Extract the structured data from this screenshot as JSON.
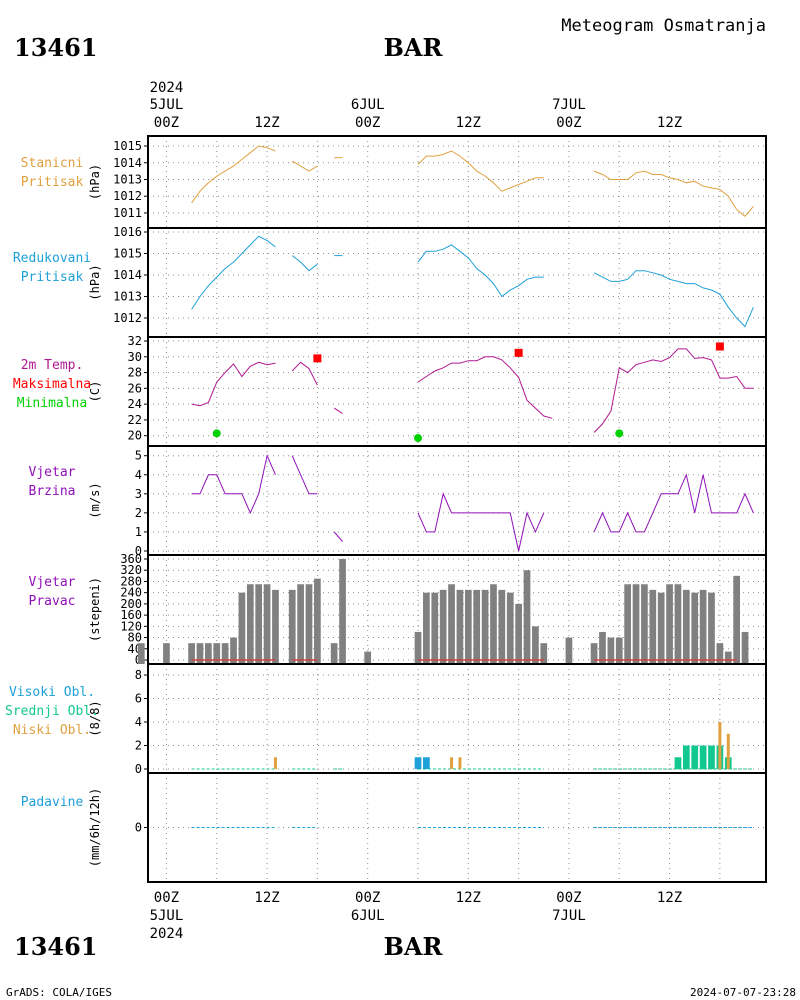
{
  "header": {
    "station_left": "13461",
    "station_center": "BAR",
    "title": "Meteogram Osmatranja",
    "station_left_bottom": "13461",
    "station_center_bottom": "BAR"
  },
  "footer": {
    "left": "GrADS: COLA/IGES",
    "right": "2024-07-07-23:28"
  },
  "time_axis_top": {
    "year": "2024",
    "labels": [
      {
        "t": 0,
        "day": "5JUL",
        "hour": "00Z"
      },
      {
        "t": 12,
        "day": "",
        "hour": "12Z"
      },
      {
        "t": 24,
        "day": "6JUL",
        "hour": "00Z"
      },
      {
        "t": 36,
        "day": "",
        "hour": "12Z"
      },
      {
        "t": 48,
        "day": "7JUL",
        "hour": "00Z"
      },
      {
        "t": 60,
        "day": "",
        "hour": "12Z"
      }
    ]
  },
  "time_axis_bottom": {
    "year": "2024",
    "labels": [
      {
        "t": 0,
        "hour": "00Z",
        "day": "5JUL"
      },
      {
        "t": 12,
        "hour": "12Z",
        "day": ""
      },
      {
        "t": 24,
        "hour": "00Z",
        "day": "6JUL"
      },
      {
        "t": 36,
        "hour": "12Z",
        "day": ""
      },
      {
        "t": 48,
        "hour": "00Z",
        "day": "7JUL"
      },
      {
        "t": 60,
        "hour": "12Z",
        "day": ""
      }
    ]
  },
  "colors": {
    "station_pressure": "#e0a040",
    "reduced_pressure": "#1ea0d8",
    "temperature": "#b01890",
    "tmax": "#ff0000",
    "tmin": "#00d200",
    "wind_speed": "#9010b8",
    "wind_direction_label": "#9010b8",
    "wind_bar": "#808080",
    "wind_calm": "#d04040",
    "high_clouds": "#1ea0d8",
    "middle_clouds": "#10c890",
    "low_clouds": "#e0a040",
    "precip_label": "#1ea0d8",
    "precip_line": "#1ea0d8"
  },
  "chart_data": [
    {
      "type": "line",
      "panel": "stanicni-pritisak",
      "labels": [
        "Stanicni",
        "Pritisak"
      ],
      "ylabel": "(hPa)",
      "ylim": [
        1010.4,
        1015.3
      ],
      "yticks": [
        1011,
        1012,
        1013,
        1014,
        1015
      ],
      "grid": true,
      "segments": [
        {
          "x": [
            3,
            4,
            5,
            6,
            7,
            8,
            9,
            10,
            11,
            12,
            13
          ],
          "y": [
            1011.6,
            1012.3,
            1012.8,
            1013.2,
            1013.5,
            1013.8,
            1014.2,
            1014.6,
            1015.0,
            1014.9,
            1014.7
          ]
        },
        {
          "x": [
            15,
            16,
            17,
            18
          ],
          "y": [
            1014.1,
            1013.8,
            1013.5,
            1013.8
          ]
        },
        {
          "x": [
            20,
            21
          ],
          "y": [
            1014.3,
            1014.3
          ]
        },
        {
          "x": [
            30,
            31,
            32,
            33,
            34,
            35,
            36,
            37,
            38,
            39,
            40,
            41,
            42,
            43,
            44,
            45
          ],
          "y": [
            1013.9,
            1014.4,
            1014.4,
            1014.5,
            1014.7,
            1014.4,
            1014.0,
            1013.5,
            1013.2,
            1012.8,
            1012.3,
            1012.5,
            1012.7,
            1012.9,
            1013.1,
            1013.1
          ]
        },
        {
          "x": [
            51,
            52,
            53,
            54,
            55,
            56,
            57,
            58,
            59,
            60,
            61,
            62,
            63,
            64,
            65,
            66,
            67,
            68,
            69,
            70
          ],
          "y": [
            1013.5,
            1013.3,
            1013.0,
            1013.0,
            1013.0,
            1013.4,
            1013.5,
            1013.3,
            1013.3,
            1013.1,
            1013.0,
            1012.8,
            1012.9,
            1012.6,
            1012.5,
            1012.4,
            1012.0,
            1011.2,
            1010.8,
            1011.4
          ]
        }
      ]
    },
    {
      "type": "line",
      "panel": "redukovani-pritisak",
      "labels": [
        "Redukovani",
        "Pritisak"
      ],
      "ylabel": "(hPa)",
      "ylim": [
        1011.3,
        1016.0
      ],
      "yticks": [
        1012,
        1013,
        1014,
        1015,
        1016
      ],
      "grid": true,
      "segments": [
        {
          "x": [
            3,
            4,
            5,
            6,
            7,
            8,
            9,
            10,
            11,
            12,
            13
          ],
          "y": [
            1012.4,
            1013.0,
            1013.5,
            1013.9,
            1014.3,
            1014.6,
            1015.0,
            1015.4,
            1015.8,
            1015.6,
            1015.3
          ]
        },
        {
          "x": [
            15,
            16,
            17,
            18
          ],
          "y": [
            1014.9,
            1014.6,
            1014.2,
            1014.5
          ]
        },
        {
          "x": [
            20,
            21
          ],
          "y": [
            1014.9,
            1014.9
          ]
        },
        {
          "x": [
            30,
            31,
            32,
            33,
            34,
            35,
            36,
            37,
            38,
            39,
            40,
            41,
            42,
            43,
            44,
            45
          ],
          "y": [
            1014.6,
            1015.1,
            1015.1,
            1015.2,
            1015.4,
            1015.1,
            1014.8,
            1014.3,
            1014.0,
            1013.6,
            1013.0,
            1013.3,
            1013.5,
            1013.8,
            1013.9,
            1013.9
          ]
        },
        {
          "x": [
            51,
            52,
            53,
            54,
            55,
            56,
            57,
            58,
            59,
            60,
            61,
            62,
            63,
            64,
            65,
            66,
            67,
            68,
            69,
            70
          ],
          "y": [
            1014.1,
            1013.9,
            1013.7,
            1013.7,
            1013.8,
            1014.2,
            1014.2,
            1014.1,
            1014.0,
            1013.8,
            1013.7,
            1013.6,
            1013.6,
            1013.4,
            1013.3,
            1013.1,
            1012.5,
            1012.0,
            1011.6,
            1012.5
          ]
        }
      ]
    },
    {
      "type": "line",
      "panel": "temperatura",
      "labels": [
        "2m Temp.",
        "Maksimalna",
        "Minimalna"
      ],
      "ylabel": "(C)",
      "ylim": [
        19.2,
        32.0
      ],
      "yticks": [
        20,
        22,
        24,
        26,
        28,
        30,
        32
      ],
      "grid": true,
      "segments": [
        {
          "x": [
            3,
            4,
            5,
            6,
            7,
            8,
            9,
            10,
            11,
            12,
            13
          ],
          "y": [
            24.0,
            23.8,
            24.2,
            26.8,
            28.0,
            29.1,
            27.5,
            28.8,
            29.3,
            29.0,
            29.2
          ]
        },
        {
          "x": [
            15,
            16,
            17,
            18
          ],
          "y": [
            28.2,
            29.3,
            28.5,
            26.4
          ]
        },
        {
          "x": [
            20,
            21
          ],
          "y": [
            23.5,
            22.8
          ]
        },
        {
          "x": [
            30,
            31,
            32,
            33,
            34,
            35,
            36,
            37,
            38,
            39,
            40,
            41,
            42,
            43,
            44,
            45,
            46
          ],
          "y": [
            26.8,
            27.5,
            28.2,
            28.6,
            29.2,
            29.2,
            29.5,
            29.5,
            30.0,
            30.0,
            29.6,
            28.6,
            27.4,
            24.5,
            23.5,
            22.5,
            22.2
          ]
        },
        {
          "x": [
            51,
            52,
            53,
            54,
            55,
            56,
            57,
            58,
            59,
            60,
            61,
            62,
            63,
            64,
            65,
            66,
            67,
            68,
            69,
            70
          ],
          "y": [
            20.4,
            21.5,
            23.1,
            28.6,
            28.0,
            29.0,
            29.3,
            29.6,
            29.4,
            29.9,
            31.0,
            31.0,
            29.8,
            29.9,
            29.6,
            27.3,
            27.3,
            27.5,
            26.0,
            26.0
          ]
        }
      ],
      "tmax": [
        {
          "t": 18,
          "y": 29.8
        },
        {
          "t": 42,
          "y": 30.5
        },
        {
          "t": 66,
          "y": 31.3
        }
      ],
      "tmin": [
        {
          "t": 6,
          "y": 20.3
        },
        {
          "t": 30,
          "y": 19.7
        },
        {
          "t": 54,
          "y": 20.3
        }
      ]
    },
    {
      "type": "line",
      "panel": "vjetar-brzina",
      "labels": [
        "Vjetar",
        "Brzina"
      ],
      "ylabel": "(m/s)",
      "ylim": [
        0,
        5.3
      ],
      "yticks": [
        0,
        1,
        2,
        3,
        4,
        5
      ],
      "grid": true,
      "segments": [
        {
          "x": [
            3,
            4,
            5,
            6,
            7,
            8,
            9,
            10,
            11,
            12,
            13
          ],
          "y": [
            3,
            3,
            4,
            4,
            3,
            3,
            3,
            2,
            3,
            5,
            4
          ]
        },
        {
          "x": [
            15,
            16,
            17,
            18
          ],
          "y": [
            5,
            4,
            3,
            3
          ]
        },
        {
          "x": [
            20,
            21
          ],
          "y": [
            1,
            0.5
          ]
        },
        {
          "x": [
            30,
            31,
            32,
            33,
            34,
            35,
            36,
            37,
            38,
            39,
            40,
            41,
            42,
            43,
            44,
            45
          ],
          "y": [
            2,
            1,
            1,
            3,
            2,
            2,
            2,
            2,
            2,
            2,
            2,
            2,
            0,
            2,
            1,
            2
          ]
        },
        {
          "x": [
            51,
            52,
            53,
            54,
            55,
            56,
            57,
            58,
            59,
            60,
            61,
            62,
            63,
            64,
            65,
            66,
            67,
            68,
            69,
            70
          ],
          "y": [
            1,
            2,
            1,
            1,
            2,
            1,
            1,
            2,
            3,
            3,
            3,
            4,
            2,
            4,
            2,
            2,
            2,
            2,
            3,
            2
          ]
        }
      ]
    },
    {
      "type": "bar",
      "panel": "vjetar-pravac",
      "labels": [
        "Vjetar",
        "Pravac"
      ],
      "ylabel": "(stepeni)",
      "ylim": [
        0,
        360
      ],
      "yticks": [
        0,
        40,
        80,
        120,
        160,
        200,
        240,
        280,
        320,
        360
      ],
      "grid": true,
      "bars": [
        [
          -3,
          60
        ],
        [
          0,
          60
        ],
        [
          3,
          60
        ],
        [
          4,
          60
        ],
        [
          5,
          60
        ],
        [
          6,
          60
        ],
        [
          7,
          60
        ],
        [
          8,
          80
        ],
        [
          9,
          240
        ],
        [
          10,
          270
        ],
        [
          11,
          270
        ],
        [
          12,
          270
        ],
        [
          13,
          250
        ],
        [
          15,
          250
        ],
        [
          16,
          270
        ],
        [
          17,
          270
        ],
        [
          18,
          290
        ],
        [
          20,
          60
        ],
        [
          21,
          360
        ],
        [
          24,
          30
        ],
        [
          30,
          100
        ],
        [
          31,
          240
        ],
        [
          32,
          240
        ],
        [
          33,
          250
        ],
        [
          34,
          270
        ],
        [
          35,
          250
        ],
        [
          36,
          250
        ],
        [
          37,
          250
        ],
        [
          38,
          250
        ],
        [
          39,
          270
        ],
        [
          40,
          250
        ],
        [
          41,
          240
        ],
        [
          42,
          200
        ],
        [
          43,
          320
        ],
        [
          44,
          120
        ],
        [
          45,
          60
        ],
        [
          48,
          80
        ],
        [
          51,
          60
        ],
        [
          52,
          100
        ],
        [
          53,
          80
        ],
        [
          54,
          80
        ],
        [
          55,
          270
        ],
        [
          56,
          270
        ],
        [
          57,
          270
        ],
        [
          58,
          250
        ],
        [
          59,
          240
        ],
        [
          60,
          270
        ],
        [
          61,
          270
        ],
        [
          62,
          250
        ],
        [
          63,
          240
        ],
        [
          64,
          250
        ],
        [
          65,
          240
        ],
        [
          66,
          60
        ],
        [
          67,
          30
        ],
        [
          68,
          300
        ],
        [
          69,
          100
        ]
      ],
      "calm_segments": [
        [
          3,
          13
        ],
        [
          15,
          18
        ],
        [
          30,
          45
        ],
        [
          51,
          68
        ]
      ]
    },
    {
      "type": "bar",
      "panel": "oblacnost",
      "labels": [
        "Visoki Obl.",
        "Srednji Obl.",
        "Niski Obl."
      ],
      "ylabel": "(8/8)",
      "ylim": [
        0,
        8.6
      ],
      "yticks": [
        0,
        2,
        4,
        6,
        8
      ],
      "grid": true,
      "series": [
        {
          "name": "Visoki Obl.",
          "bars": [
            [
              30,
              1
            ],
            [
              31,
              1
            ]
          ]
        },
        {
          "name": "Srednji Obl.",
          "bars": [
            [
              61,
              1
            ],
            [
              62,
              2
            ],
            [
              63,
              2
            ],
            [
              64,
              2
            ],
            [
              65,
              2
            ],
            [
              66,
              2
            ],
            [
              67,
              1
            ]
          ]
        },
        {
          "name": "Niski Obl.",
          "bars": [
            [
              13,
              1
            ],
            [
              34,
              1
            ],
            [
              35,
              1
            ],
            [
              66,
              4
            ],
            [
              67,
              3
            ]
          ]
        }
      ],
      "baseline_segments": [
        [
          3,
          13
        ],
        [
          15,
          18
        ],
        [
          20,
          21
        ],
        [
          30,
          45
        ],
        [
          51,
          70
        ]
      ]
    },
    {
      "type": "line",
      "panel": "padavine",
      "labels": [
        "Padavine"
      ],
      "ylabel": "(mm/6h/12h)",
      "ylim": [
        -5,
        5
      ],
      "yticks": [
        0
      ],
      "grid": true,
      "segments": [
        {
          "x": [
            3,
            13
          ],
          "y": [
            0,
            0
          ]
        },
        {
          "x": [
            15,
            18
          ],
          "y": [
            0,
            0
          ]
        },
        {
          "x": [
            30,
            45
          ],
          "y": [
            0,
            0
          ]
        },
        {
          "x": [
            51,
            70
          ],
          "y": [
            0,
            0
          ]
        }
      ]
    }
  ]
}
